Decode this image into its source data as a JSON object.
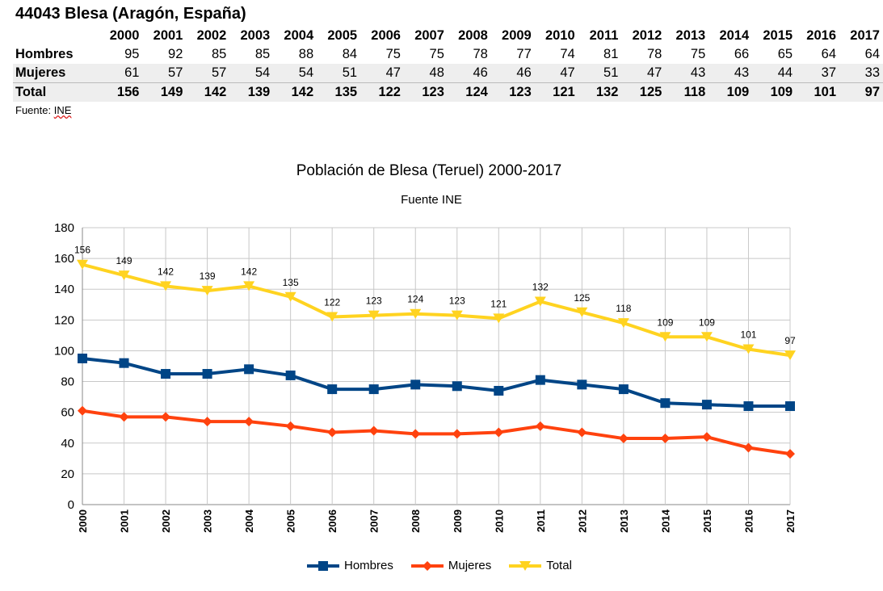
{
  "page_title": "44043 Blesa (Aragón, España)",
  "table": {
    "years": [
      "2000",
      "2001",
      "2002",
      "2003",
      "2004",
      "2005",
      "2006",
      "2007",
      "2008",
      "2009",
      "2010",
      "2011",
      "2012",
      "2013",
      "2014",
      "2015",
      "2016",
      "2017"
    ],
    "rows": [
      {
        "label": "Hombres",
        "values": [
          "95",
          "92",
          "85",
          "85",
          "88",
          "84",
          "75",
          "75",
          "78",
          "77",
          "74",
          "81",
          "78",
          "75",
          "66",
          "65",
          "64",
          "64"
        ]
      },
      {
        "label": "Mujeres",
        "values": [
          "61",
          "57",
          "57",
          "54",
          "54",
          "51",
          "47",
          "48",
          "46",
          "46",
          "47",
          "51",
          "47",
          "43",
          "43",
          "44",
          "37",
          "33"
        ]
      },
      {
        "label": "Total",
        "values": [
          "156",
          "149",
          "142",
          "139",
          "142",
          "135",
          "122",
          "123",
          "124",
          "123",
          "121",
          "132",
          "125",
          "118",
          "109",
          "109",
          "101",
          "97"
        ]
      }
    ]
  },
  "source": {
    "prefix": "Fuente: ",
    "name": "INE"
  },
  "chart_data": {
    "type": "line",
    "title": "Población de Blesa (Teruel) 2000-2017",
    "subtitle": "Fuente INE",
    "categories": [
      "2000",
      "2001",
      "2002",
      "2003",
      "2004",
      "2005",
      "2006",
      "2007",
      "2008",
      "2009",
      "2010",
      "2011",
      "2012",
      "2013",
      "2014",
      "2015",
      "2016",
      "2017"
    ],
    "ylim": [
      0,
      180
    ],
    "yticks": [
      0,
      20,
      40,
      60,
      80,
      100,
      120,
      140,
      160,
      180
    ],
    "grid": true,
    "legend_position": "bottom",
    "series": [
      {
        "name": "Hombres",
        "color": "#004586",
        "marker": "square",
        "values": [
          95,
          92,
          85,
          85,
          88,
          84,
          75,
          75,
          78,
          77,
          74,
          81,
          78,
          75,
          66,
          65,
          64,
          64
        ]
      },
      {
        "name": "Mujeres",
        "color": "#ff420e",
        "marker": "diamond",
        "values": [
          61,
          57,
          57,
          54,
          54,
          51,
          47,
          48,
          46,
          46,
          47,
          51,
          47,
          43,
          43,
          44,
          37,
          33
        ]
      },
      {
        "name": "Total",
        "color": "#ffd320",
        "marker": "triangle-down",
        "values": [
          156,
          149,
          142,
          139,
          142,
          135,
          122,
          123,
          124,
          123,
          121,
          132,
          125,
          118,
          109,
          109,
          101,
          97
        ],
        "data_labels": true
      }
    ]
  }
}
